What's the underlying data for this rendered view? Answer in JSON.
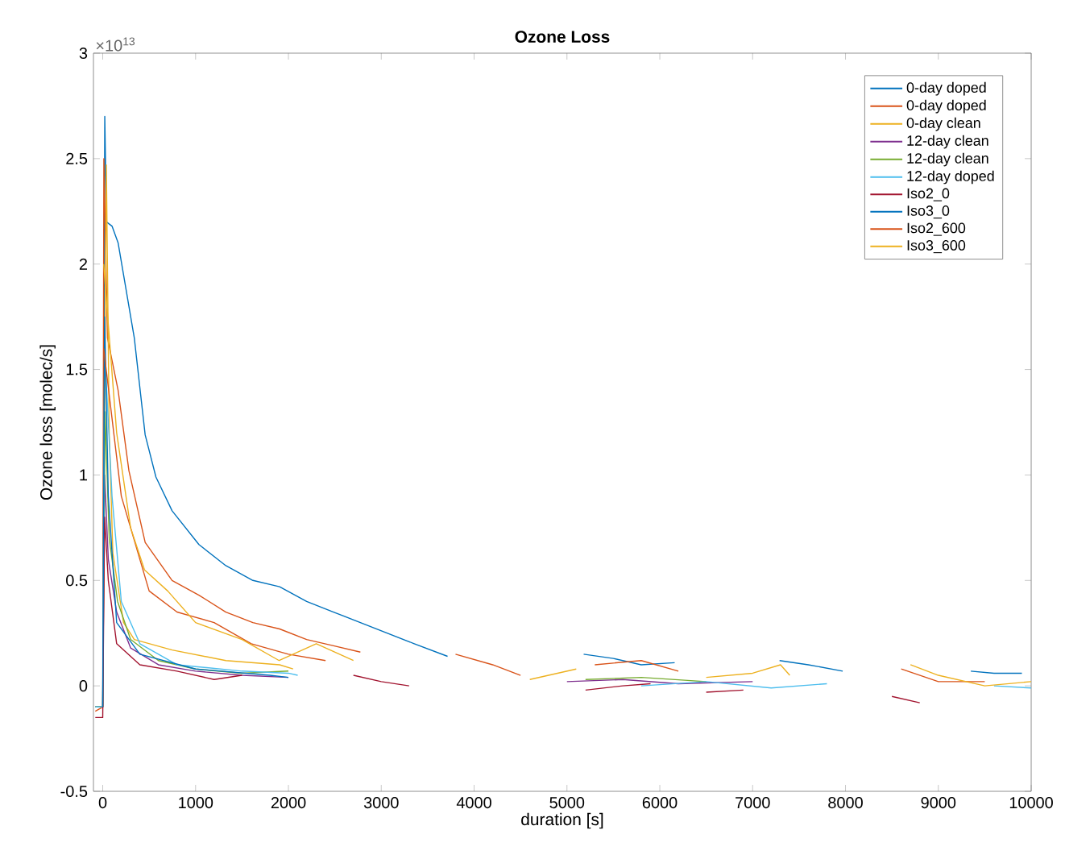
{
  "chart_data": {
    "type": "line",
    "title": "Ozone Loss",
    "xlabel": "duration [s]",
    "ylabel": "Ozone loss [molec/s]",
    "annotations": [
      "×10$^{13}$"
    ],
    "xlim": [
      -100,
      10000
    ],
    "xticks": [
      0,
      1000,
      2000,
      3000,
      4000,
      5000,
      6000,
      7000,
      8000,
      9000,
      10000
    ],
    "ylim": [
      -0.5,
      3
    ],
    "yticks": [
      -0.5,
      0,
      0.5,
      1,
      1.5,
      2,
      2.5,
      3
    ],
    "legend": "top right",
    "series": [
      {
        "name": "0-day doped",
        "color": "#0072bd",
        "x": [
          -80,
          0,
          15,
          22,
          40,
          100,
          166,
          340,
          457,
          573,
          747,
          1036,
          1326,
          1617,
          1905,
          2196,
          2486,
          2775,
          3065,
          3355,
          3714
        ],
        "values": [
          -0.1,
          -0.1,
          1.8,
          2.7,
          2.2,
          2.18,
          2.1,
          1.65,
          1.19,
          0.99,
          0.83,
          0.67,
          0.57,
          0.5,
          0.47,
          0.4,
          0.35,
          0.3,
          0.25,
          0.2,
          0.14
        ]
      },
      {
        "name": "0-day doped",
        "color": "#d95319",
        "x": [
          -80,
          0,
          12,
          51,
          166,
          282,
          457,
          747,
          1036,
          1326,
          1617,
          1905,
          2196,
          2486,
          2775
        ],
        "values": [
          -0.12,
          -0.1,
          2.5,
          1.65,
          1.4,
          1.02,
          0.68,
          0.5,
          0.43,
          0.35,
          0.3,
          0.27,
          0.22,
          0.19,
          0.16
        ]
      },
      {
        "name": "0-day clean",
        "color": "#edb120",
        "x": [
          -80,
          0,
          39,
          70,
          109,
          224,
          340,
          747,
          1326,
          1905,
          2050
        ],
        "values": [
          -0.1,
          -0.1,
          2.47,
          1.2,
          0.63,
          0.3,
          0.22,
          0.17,
          0.12,
          0.1,
          0.08
        ]
      },
      {
        "name": "12-day clean",
        "color": "#7e2f8e",
        "x": [
          -80,
          0,
          20,
          60,
          150,
          300,
          600,
          1000,
          1500,
          2000,
          3000,
          5000,
          5600,
          6200,
          7000
        ],
        "values": [
          -0.1,
          -0.1,
          1.0,
          0.6,
          0.35,
          0.18,
          0.1,
          0.07,
          0.05,
          0.04,
          null,
          0.02,
          0.03,
          0.01,
          0.02
        ]
      },
      {
        "name": "12-day clean",
        "color": "#77ac30",
        "x": [
          -80,
          0,
          25,
          70,
          160,
          300,
          600,
          1000,
          1500,
          2000,
          3000,
          5200,
          5800,
          6500
        ],
        "values": [
          -0.1,
          -0.1,
          1.3,
          0.7,
          0.4,
          0.22,
          0.12,
          0.08,
          0.06,
          0.07,
          null,
          0.03,
          0.04,
          0.02
        ]
      },
      {
        "name": "12-day doped",
        "color": "#4dbeee",
        "x": [
          -80,
          0,
          20,
          100,
          200,
          400,
          800,
          1500,
          2000,
          2100,
          4000,
          5800,
          6500,
          7200,
          7800,
          7900,
          9200,
          9600,
          10000
        ],
        "values": [
          -0.1,
          -0.1,
          1.6,
          0.9,
          0.4,
          0.2,
          0.1,
          0.07,
          0.06,
          0.05,
          null,
          0,
          0.02,
          -0.01,
          0.01,
          null,
          null,
          0,
          -0.01
        ]
      },
      {
        "name": "Iso2_0",
        "color": "#a2142f",
        "x": [
          -80,
          0,
          20,
          60,
          150,
          400,
          800,
          1200,
          1500,
          1600,
          2700,
          3000,
          3300,
          3400,
          5200,
          5600,
          5900,
          6000,
          6500,
          6900,
          7000,
          8500,
          8800
        ],
        "values": [
          -0.15,
          -0.15,
          0.8,
          0.5,
          0.2,
          0.1,
          0.07,
          0.03,
          0.05,
          null,
          0.05,
          0.02,
          0,
          null,
          -0.02,
          0,
          0.01,
          null,
          -0.03,
          -0.02,
          null,
          -0.05,
          -0.08
        ]
      },
      {
        "name": "Iso3_0",
        "color": "#0072bd",
        "x": [
          0,
          20,
          60,
          150,
          400,
          1000,
          1800,
          2000,
          3000,
          5180,
          5500,
          5800,
          6160,
          6200,
          7290,
          7600,
          7970,
          8000,
          9350,
          9600,
          9900
        ],
        "values": [
          -0.1,
          1.75,
          0.9,
          0.3,
          0.15,
          0.08,
          0.05,
          0.04,
          null,
          0.15,
          0.13,
          0.1,
          0.11,
          null,
          0.12,
          0.1,
          0.07,
          null,
          0.07,
          0.06,
          0.06
        ]
      },
      {
        "name": "Iso2_600",
        "color": "#d95319",
        "x": [
          10,
          200,
          500,
          800,
          1200,
          1600,
          2000,
          2400,
          3000,
          3800,
          4200,
          4500,
          5000,
          5300,
          5800,
          6200,
          7000,
          8600,
          9000,
          9500
        ],
        "values": [
          1.6,
          0.9,
          0.45,
          0.35,
          0.3,
          0.2,
          0.15,
          0.12,
          null,
          0.15,
          0.1,
          0.05,
          null,
          0.1,
          0.12,
          0.07,
          null,
          0.08,
          0.02,
          0.02
        ]
      },
      {
        "name": "Iso3_600",
        "color": "#edb120",
        "x": [
          10,
          150,
          300,
          450,
          700,
          1000,
          1500,
          1900,
          2300,
          2700,
          4000,
          4600,
          5100,
          6000,
          6500,
          7000,
          7300,
          7400,
          8000,
          8700,
          9000,
          9500,
          10000
        ],
        "values": [
          2.0,
          1.2,
          0.75,
          0.55,
          0.45,
          0.3,
          0.22,
          0.12,
          0.2,
          0.12,
          null,
          0.03,
          0.08,
          null,
          0.04,
          0.06,
          0.1,
          0.05,
          null,
          0.1,
          0.05,
          0,
          0.02
        ]
      }
    ]
  }
}
